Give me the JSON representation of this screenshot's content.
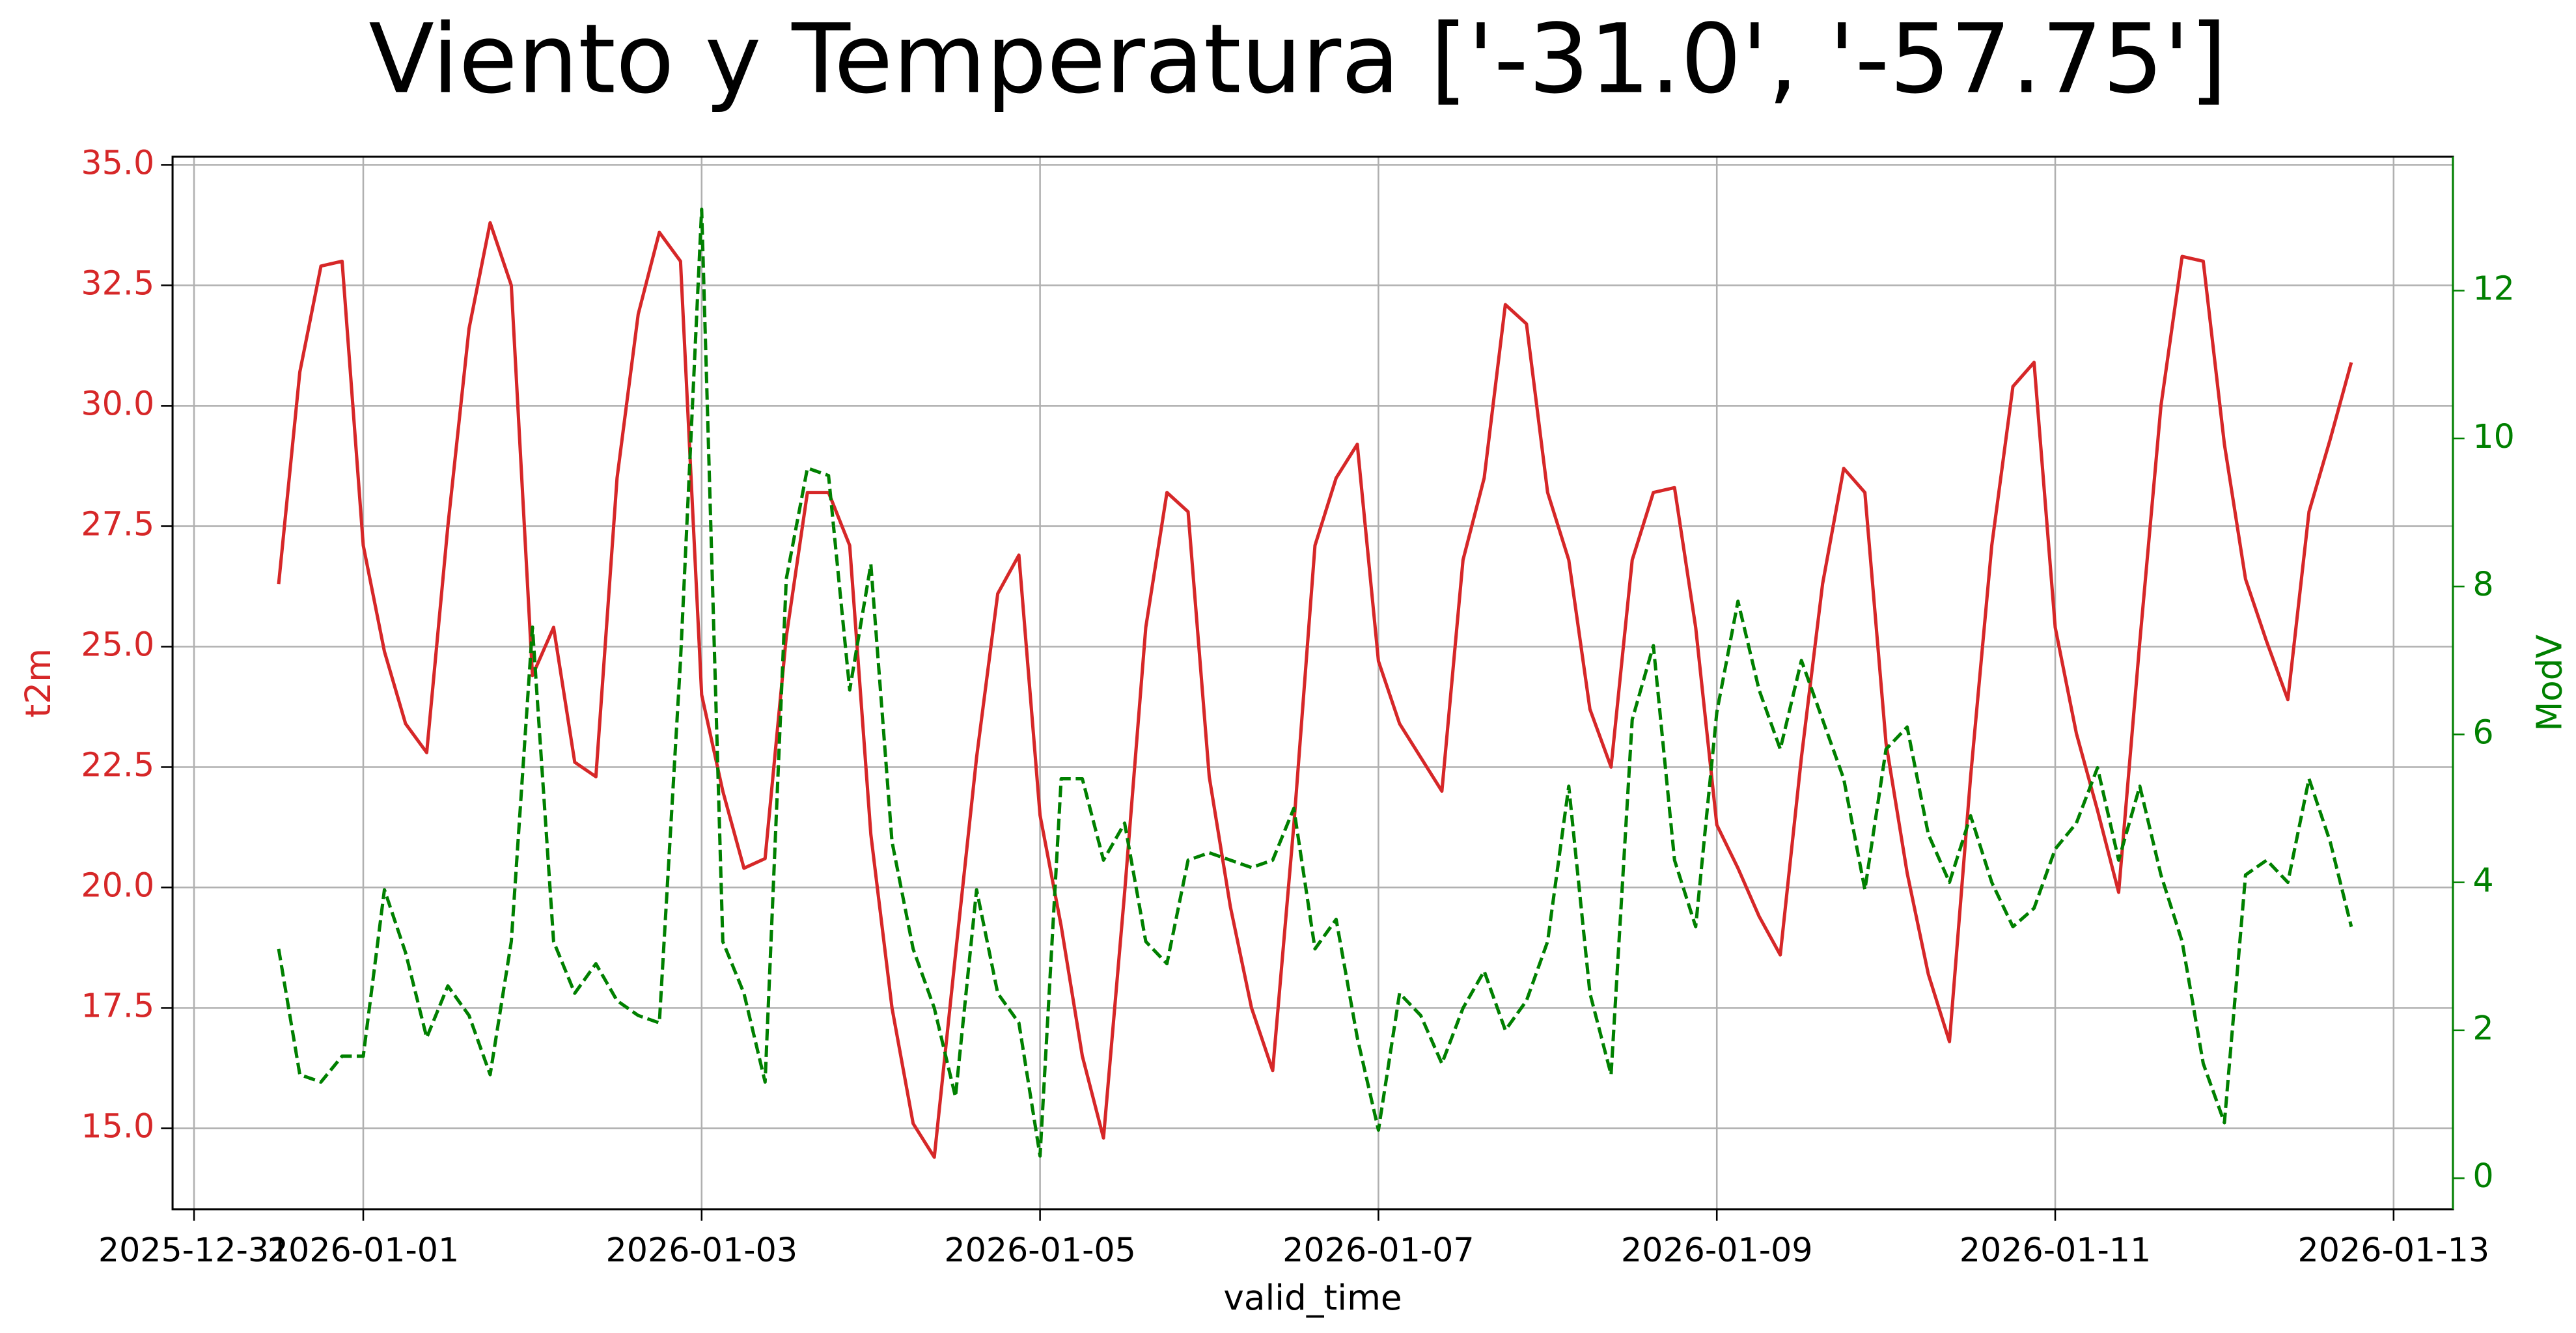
{
  "chart_data": {
    "type": "line",
    "title": "Viento y Temperatura ['-31.0', '-57.75']",
    "xlabel": "valid_time",
    "ylabel": "t2m",
    "y2label": "ModV",
    "x": [
      "2025-12-31 12:00",
      "2025-12-31 15:00",
      "2025-12-31 18:00",
      "2025-12-31 21:00",
      "2026-01-01 00:00",
      "2026-01-01 03:00",
      "2026-01-01 06:00",
      "2026-01-01 09:00",
      "2026-01-01 12:00",
      "2026-01-01 15:00",
      "2026-01-01 18:00",
      "2026-01-01 21:00",
      "2026-01-02 00:00",
      "2026-01-02 03:00",
      "2026-01-02 06:00",
      "2026-01-02 09:00",
      "2026-01-02 12:00",
      "2026-01-02 15:00",
      "2026-01-02 18:00",
      "2026-01-02 21:00",
      "2026-01-03 00:00",
      "2026-01-03 03:00",
      "2026-01-03 06:00",
      "2026-01-03 09:00",
      "2026-01-03 12:00",
      "2026-01-03 15:00",
      "2026-01-03 18:00",
      "2026-01-03 21:00",
      "2026-01-04 00:00",
      "2026-01-04 03:00",
      "2026-01-04 06:00",
      "2026-01-04 09:00",
      "2026-01-04 12:00",
      "2026-01-04 15:00",
      "2026-01-04 18:00",
      "2026-01-04 21:00",
      "2026-01-05 00:00",
      "2026-01-05 03:00",
      "2026-01-05 06:00",
      "2026-01-05 09:00",
      "2026-01-05 12:00",
      "2026-01-05 15:00",
      "2026-01-05 18:00",
      "2026-01-05 21:00",
      "2026-01-06 00:00",
      "2026-01-06 03:00",
      "2026-01-06 06:00",
      "2026-01-06 09:00",
      "2026-01-06 12:00",
      "2026-01-06 15:00",
      "2026-01-06 18:00",
      "2026-01-06 21:00",
      "2026-01-07 00:00",
      "2026-01-07 03:00",
      "2026-01-07 06:00",
      "2026-01-07 09:00",
      "2026-01-07 12:00",
      "2026-01-07 15:00",
      "2026-01-07 18:00",
      "2026-01-07 21:00",
      "2026-01-08 00:00",
      "2026-01-08 03:00",
      "2026-01-08 06:00",
      "2026-01-08 09:00",
      "2026-01-08 12:00",
      "2026-01-08 15:00",
      "2026-01-08 18:00",
      "2026-01-08 21:00",
      "2026-01-09 00:00",
      "2026-01-09 03:00",
      "2026-01-09 06:00",
      "2026-01-09 09:00",
      "2026-01-09 12:00",
      "2026-01-09 15:00",
      "2026-01-09 18:00",
      "2026-01-09 21:00",
      "2026-01-10 00:00",
      "2026-01-10 03:00",
      "2026-01-10 06:00",
      "2026-01-10 09:00",
      "2026-01-10 12:00",
      "2026-01-10 15:00",
      "2026-01-10 18:00",
      "2026-01-10 21:00",
      "2026-01-11 00:00",
      "2026-01-11 03:00",
      "2026-01-11 06:00",
      "2026-01-11 09:00",
      "2026-01-11 12:00",
      "2026-01-11 15:00",
      "2026-01-11 18:00",
      "2026-01-11 21:00",
      "2026-01-12 00:00",
      "2026-01-12 03:00",
      "2026-01-12 06:00",
      "2026-01-12 09:00",
      "2026-01-12 12:00",
      "2026-01-12 15:00",
      "2026-01-12 18:00"
    ],
    "series": [
      {
        "name": "t2m",
        "color": "#d62728",
        "linestyle": "solid",
        "values": [
          26.3,
          30.7,
          32.9,
          33.0,
          27.1,
          24.9,
          23.4,
          22.8,
          27.5,
          31.6,
          33.8,
          32.5,
          24.4,
          25.4,
          22.6,
          22.3,
          28.5,
          31.9,
          33.6,
          33.0,
          24.0,
          22.0,
          20.4,
          20.6,
          25.2,
          28.2,
          28.2,
          27.1,
          21.1,
          17.5,
          15.1,
          14.4,
          18.6,
          22.7,
          26.1,
          26.9,
          21.5,
          19.2,
          16.5,
          14.8,
          19.9,
          25.4,
          28.2,
          27.8,
          22.3,
          19.6,
          17.5,
          16.2,
          21.3,
          27.1,
          28.5,
          29.2,
          24.7,
          23.4,
          22.7,
          22.0,
          26.8,
          28.5,
          32.1,
          31.7,
          28.2,
          26.8,
          23.7,
          22.5,
          26.8,
          28.2,
          28.3,
          25.4,
          21.3,
          20.4,
          19.4,
          18.6,
          22.7,
          26.3,
          28.7,
          28.2,
          23.0,
          20.3,
          18.2,
          16.8,
          22.3,
          27.1,
          30.4,
          30.9,
          25.4,
          23.2,
          21.6,
          19.9,
          25.1,
          30.0,
          33.1,
          33.0,
          29.2,
          26.4,
          25.1,
          23.9,
          27.8,
          29.3,
          30.9
        ]
      },
      {
        "name": "ModV",
        "color": "#008000",
        "linestyle": "dashed",
        "axis": "y2",
        "values": [
          3.1,
          1.4,
          1.3,
          1.65,
          1.65,
          3.9,
          3.05,
          1.9,
          2.6,
          2.2,
          1.4,
          3.2,
          7.45,
          3.2,
          2.5,
          2.9,
          2.4,
          2.2,
          2.1,
          7.0,
          13.1,
          3.2,
          2.5,
          1.3,
          8.1,
          9.6,
          9.5,
          6.6,
          8.3,
          4.55,
          3.1,
          2.3,
          1.1,
          3.9,
          2.5,
          2.1,
          0.3,
          5.4,
          5.4,
          4.3,
          4.8,
          3.2,
          2.9,
          4.3,
          4.4,
          4.3,
          4.2,
          4.3,
          5.0,
          3.1,
          3.5,
          1.9,
          0.65,
          2.5,
          2.2,
          1.55,
          2.3,
          2.8,
          2.0,
          2.4,
          3.2,
          5.3,
          2.5,
          1.4,
          6.2,
          7.2,
          4.3,
          3.4,
          6.3,
          7.8,
          6.6,
          5.8,
          7.0,
          6.2,
          5.4,
          3.9,
          5.8,
          6.1,
          4.65,
          4.0,
          4.9,
          4.0,
          3.4,
          3.65,
          4.45,
          4.8,
          5.55,
          4.3,
          5.3,
          4.1,
          3.2,
          1.55,
          0.75,
          4.1,
          4.3,
          4.0,
          5.4,
          4.55,
          3.4
        ]
      }
    ],
    "xlim": [
      "2025-12-30 20:57",
      "2026-01-13 08:25"
    ],
    "xticks": [
      "2025-12-31",
      "2026-01-01",
      "2026-01-03",
      "2026-01-05",
      "2026-01-07",
      "2026-01-09",
      "2026-01-11",
      "2026-01-13"
    ],
    "ylim": [
      13.32,
      35.17
    ],
    "yticks": [
      {
        "value": 15,
        "label": "15.0"
      },
      17.5,
      {
        "value": 20,
        "label": "20.0"
      },
      22.5,
      {
        "value": 25,
        "label": "25.0"
      },
      27.5,
      {
        "value": 30,
        "label": "30.0"
      },
      32.5,
      {
        "value": 35,
        "label": "35.0"
      }
    ],
    "y2lim": [
      -0.42,
      13.81
    ],
    "y2ticks": [
      0,
      2,
      4,
      6,
      8,
      10,
      12
    ],
    "grid": true
  }
}
